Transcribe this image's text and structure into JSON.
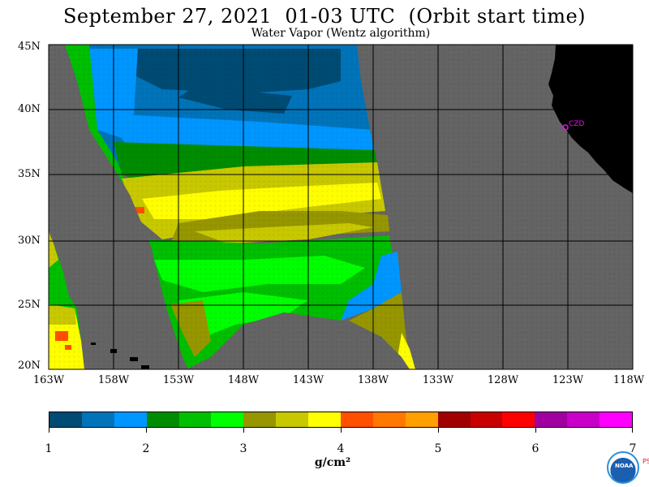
{
  "title": "September 27, 2021  01-03 UTC  (Orbit start time)",
  "subtitle": "Water Vapor (Wentz algorithm)",
  "map": {
    "latitude_labels": [
      "45N",
      "40N",
      "35N",
      "30N",
      "25N",
      "20N"
    ],
    "longitude_labels": [
      "163W",
      "158W",
      "153W",
      "148W",
      "143W",
      "138W",
      "133W",
      "128W",
      "123W",
      "118W"
    ],
    "station_label": "CZD",
    "colors": {
      "no_data": "#646464",
      "land": "#000000",
      "grid": "#000000",
      "station": "#ff00ff"
    }
  },
  "colorbar": {
    "colors": [
      "#004b73",
      "#0073b9",
      "#0096ff",
      "#008c00",
      "#00be00",
      "#00ff00",
      "#969600",
      "#c8c800",
      "#ffff00",
      "#ff5000",
      "#ff7800",
      "#ffa000",
      "#a00000",
      "#c80000",
      "#ff0000",
      "#a000a0",
      "#c800c8",
      "#ff00ff"
    ],
    "tick_labels": [
      "1",
      "2",
      "3",
      "4",
      "5",
      "6",
      "7"
    ],
    "units": "g/cm²"
  },
  "logo": {
    "name": "NOAA",
    "side_text": "PSL"
  }
}
